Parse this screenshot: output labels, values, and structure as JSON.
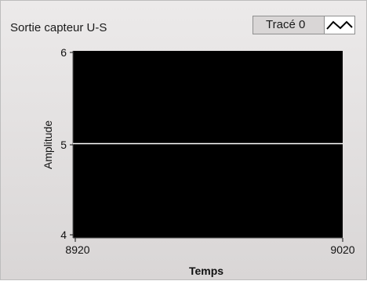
{
  "chart_data": {
    "type": "line",
    "title": "Sortie capteur U-S",
    "legend": {
      "series_label": "Tracé 0"
    },
    "xlabel": "Temps",
    "ylabel": "Amplitude",
    "xlim": [
      8920,
      9020
    ],
    "ylim": [
      4,
      6
    ],
    "xticks": [
      "8920",
      "9020"
    ],
    "yticks": [
      "6",
      "5",
      "4"
    ],
    "series": [
      {
        "name": "Tracé 0",
        "x": [
          8920,
          9020
        ],
        "y": [
          5,
          5
        ],
        "color": "#ffffff"
      }
    ],
    "plot_background": "#000000",
    "grid": false
  }
}
